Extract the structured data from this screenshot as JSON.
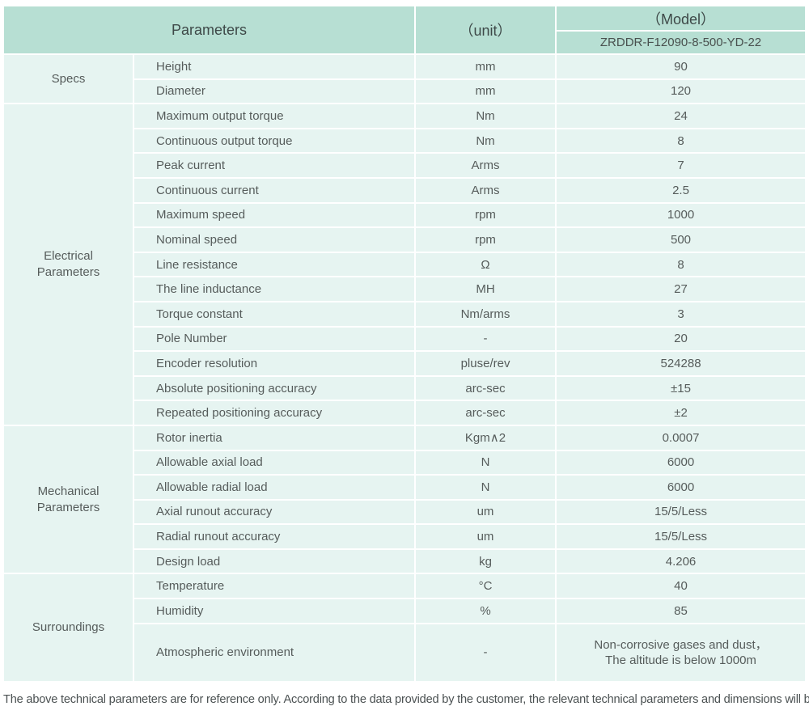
{
  "header": {
    "parameters_label": "Parameters",
    "unit_label": "（unit）",
    "model_label": "（Model）",
    "model_value": "ZRDDR-F12090-8-500-YD-22"
  },
  "groups": [
    {
      "label": "Specs",
      "rows": [
        {
          "name": "Height",
          "unit": "mm",
          "value": "90"
        },
        {
          "name": "Diameter",
          "unit": "mm",
          "value": "120"
        }
      ]
    },
    {
      "label": "Electrical\nParameters",
      "rows": [
        {
          "name": "Maximum output torque",
          "unit": "Nm",
          "value": "24"
        },
        {
          "name": "Continuous output torque",
          "unit": "Nm",
          "value": "8"
        },
        {
          "name": "Peak current",
          "unit": "Arms",
          "value": "7"
        },
        {
          "name": "Continuous current",
          "unit": "Arms",
          "value": "2.5"
        },
        {
          "name": "Maximum speed",
          "unit": "rpm",
          "value": "1000"
        },
        {
          "name": "Nominal speed",
          "unit": "rpm",
          "value": "500"
        },
        {
          "name": "Line resistance",
          "unit": "Ω",
          "value": "8"
        },
        {
          "name": "The line inductance",
          "unit": "MH",
          "value": "27"
        },
        {
          "name": "Torque constant",
          "unit": "Nm/arms",
          "value": "3"
        },
        {
          "name": "Pole Number",
          "unit": "-",
          "value": "20"
        },
        {
          "name": "Encoder resolution",
          "unit": "pluse/rev",
          "value": "524288"
        },
        {
          "name": "Absolute positioning accuracy",
          "unit": "arc-sec",
          "value": "±15"
        },
        {
          "name": "Repeated positioning accuracy",
          "unit": "arc-sec",
          "value": "±2"
        }
      ]
    },
    {
      "label": "Mechanical\nParameters",
      "rows": [
        {
          "name": "Rotor inertia",
          "unit": "Kgm∧2",
          "value": "0.0007"
        },
        {
          "name": "Allowable axial load",
          "unit": "N",
          "value": "6000"
        },
        {
          "name": "Allowable radial load",
          "unit": "N",
          "value": "6000"
        },
        {
          "name": "Axial runout accuracy",
          "unit": "um",
          "value": "15/5/Less"
        },
        {
          "name": "Radial runout accuracy",
          "unit": "um",
          "value": "15/5/Less"
        },
        {
          "name": "Design load",
          "unit": "kg",
          "value": "4.206"
        }
      ]
    },
    {
      "label": "Surroundings",
      "rows": [
        {
          "name": "Temperature",
          "unit": "°C",
          "value": "40"
        },
        {
          "name": "Humidity",
          "unit": "%",
          "value": "85"
        },
        {
          "name": "Atmospheric environment",
          "unit": "-",
          "value": "Non-corrosive gases and dust，\nThe altitude is below 1000m",
          "tall": true
        }
      ]
    }
  ],
  "footer_note": "The above technical parameters are for reference only. According to the data provided by the customer, the relevant technical parameters and dimensions will be issued.",
  "colors": {
    "header_bg": "#b7dfd3",
    "cell_bg": "#e6f4f1",
    "header_text": "#3e4948",
    "body_text": "#565c5b",
    "footer_text": "#4b5152",
    "separator": "#ffffff"
  }
}
